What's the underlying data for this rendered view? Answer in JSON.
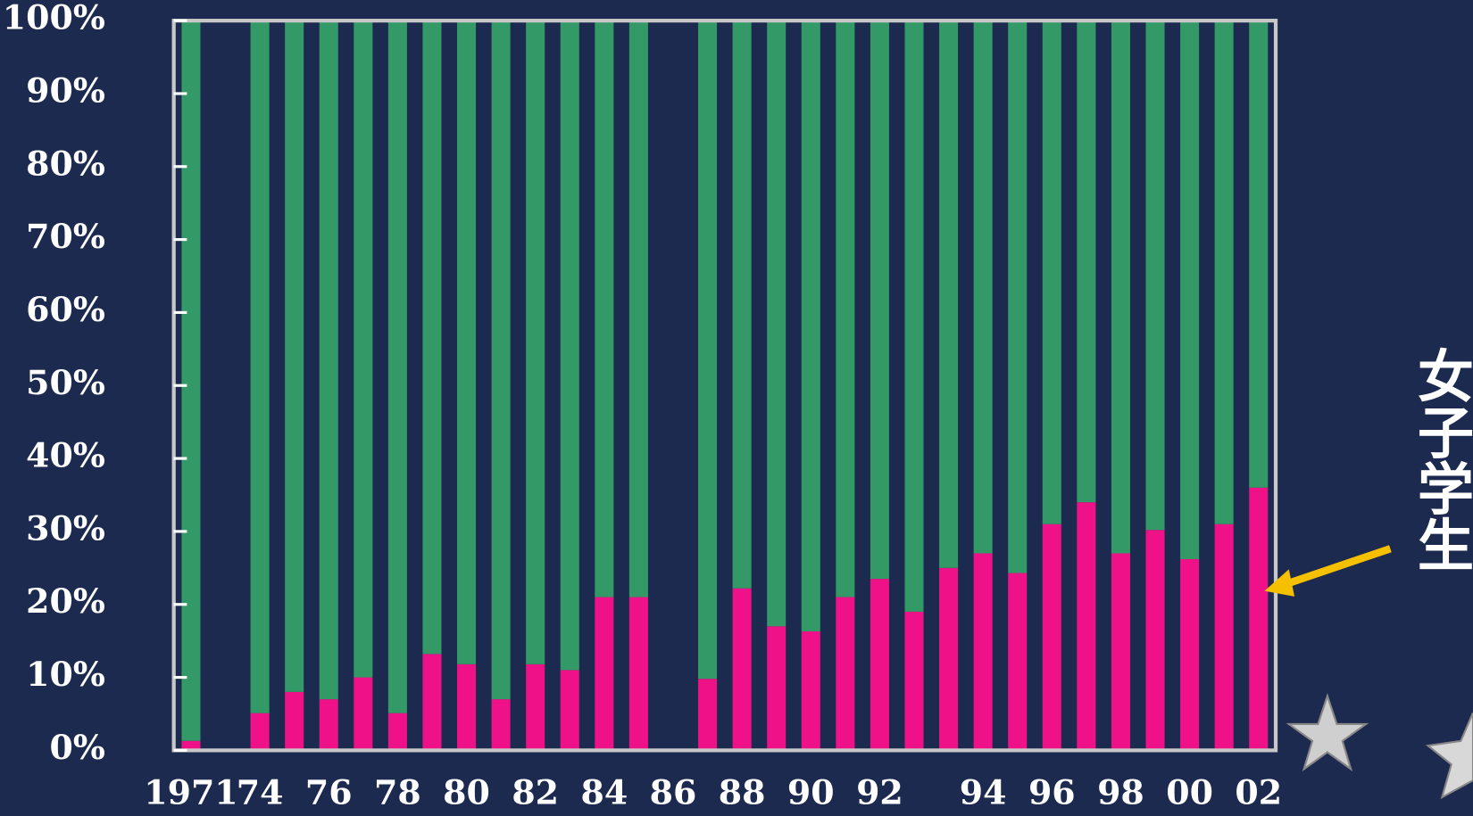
{
  "chart_data": {
    "type": "stacked-bar",
    "categories": [
      "1971",
      null,
      "74",
      null,
      "76",
      null,
      "78",
      null,
      "80",
      null,
      "82",
      null,
      "84",
      null,
      "86",
      null,
      "88",
      null,
      "90",
      null,
      "92",
      null,
      null,
      "94",
      null,
      "96",
      null,
      "98",
      null,
      "00",
      null,
      "02"
    ],
    "series": [
      {
        "name": "女子学生",
        "color": "#ee1188",
        "values": [
          1.3,
          null,
          5.1,
          8,
          7,
          10,
          5.1,
          13.2,
          11.8,
          7,
          11.8,
          11,
          21,
          21,
          null,
          9.8,
          22.2,
          17,
          16.3,
          21,
          23.5,
          19,
          25,
          27,
          24.3,
          31,
          34,
          27,
          30.2,
          26.2,
          31,
          36
        ]
      },
      {
        "color": "#339966",
        "values": [
          98.7,
          null,
          94.9,
          92,
          93,
          90,
          94.9,
          86.8,
          88.2,
          93,
          88.2,
          89,
          79,
          79,
          null,
          90.2,
          77.8,
          83,
          83.7,
          79,
          76.5,
          81,
          75,
          73,
          75.7,
          69,
          66,
          73,
          69.8,
          73.8,
          69,
          64
        ]
      }
    ],
    "ylim": [
      0,
      100
    ],
    "yticks": [
      {
        "value": 0,
        "label": "0%"
      },
      {
        "value": 10,
        "label": "10%"
      },
      {
        "value": 20,
        "label": "20%"
      },
      {
        "value": 30,
        "label": "30%"
      },
      {
        "value": 40,
        "label": "40%"
      },
      {
        "value": 50,
        "label": "50%"
      },
      {
        "value": 60,
        "label": "60%"
      },
      {
        "value": 70,
        "label": "70%"
      },
      {
        "value": 80,
        "label": "80%"
      },
      {
        "value": 90,
        "label": "90%"
      },
      {
        "value": 100,
        "label": "100%"
      }
    ]
  }
}
